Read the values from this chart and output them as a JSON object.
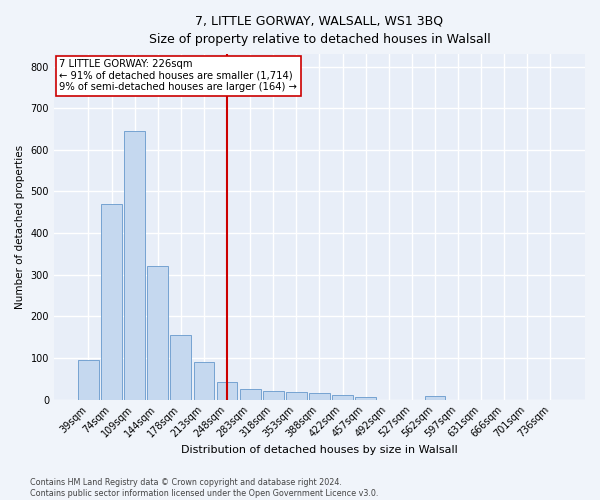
{
  "title": "7, LITTLE GORWAY, WALSALL, WS1 3BQ",
  "subtitle": "Size of property relative to detached houses in Walsall",
  "xlabel": "Distribution of detached houses by size in Walsall",
  "ylabel": "Number of detached properties",
  "categories": [
    "39sqm",
    "74sqm",
    "109sqm",
    "144sqm",
    "178sqm",
    "213sqm",
    "248sqm",
    "283sqm",
    "318sqm",
    "353sqm",
    "388sqm",
    "422sqm",
    "457sqm",
    "492sqm",
    "527sqm",
    "562sqm",
    "597sqm",
    "631sqm",
    "666sqm",
    "701sqm",
    "736sqm"
  ],
  "values": [
    95,
    470,
    645,
    322,
    155,
    90,
    42,
    25,
    20,
    18,
    15,
    10,
    7,
    0,
    0,
    9,
    0,
    0,
    0,
    0,
    0
  ],
  "bar_color": "#c5d8ef",
  "bar_edge_color": "#6699cc",
  "vline_x_index": 6.0,
  "vline_color": "#cc0000",
  "annotation_text": "7 LITTLE GORWAY: 226sqm\n← 91% of detached houses are smaller (1,714)\n9% of semi-detached houses are larger (164) →",
  "annotation_box_color": "#ffffff",
  "annotation_box_edgecolor": "#cc0000",
  "ylim": [
    0,
    830
  ],
  "yticks": [
    0,
    100,
    200,
    300,
    400,
    500,
    600,
    700,
    800
  ],
  "background_color": "#e8eef8",
  "grid_color": "#ffffff",
  "footer": "Contains HM Land Registry data © Crown copyright and database right 2024.\nContains public sector information licensed under the Open Government Licence v3.0."
}
